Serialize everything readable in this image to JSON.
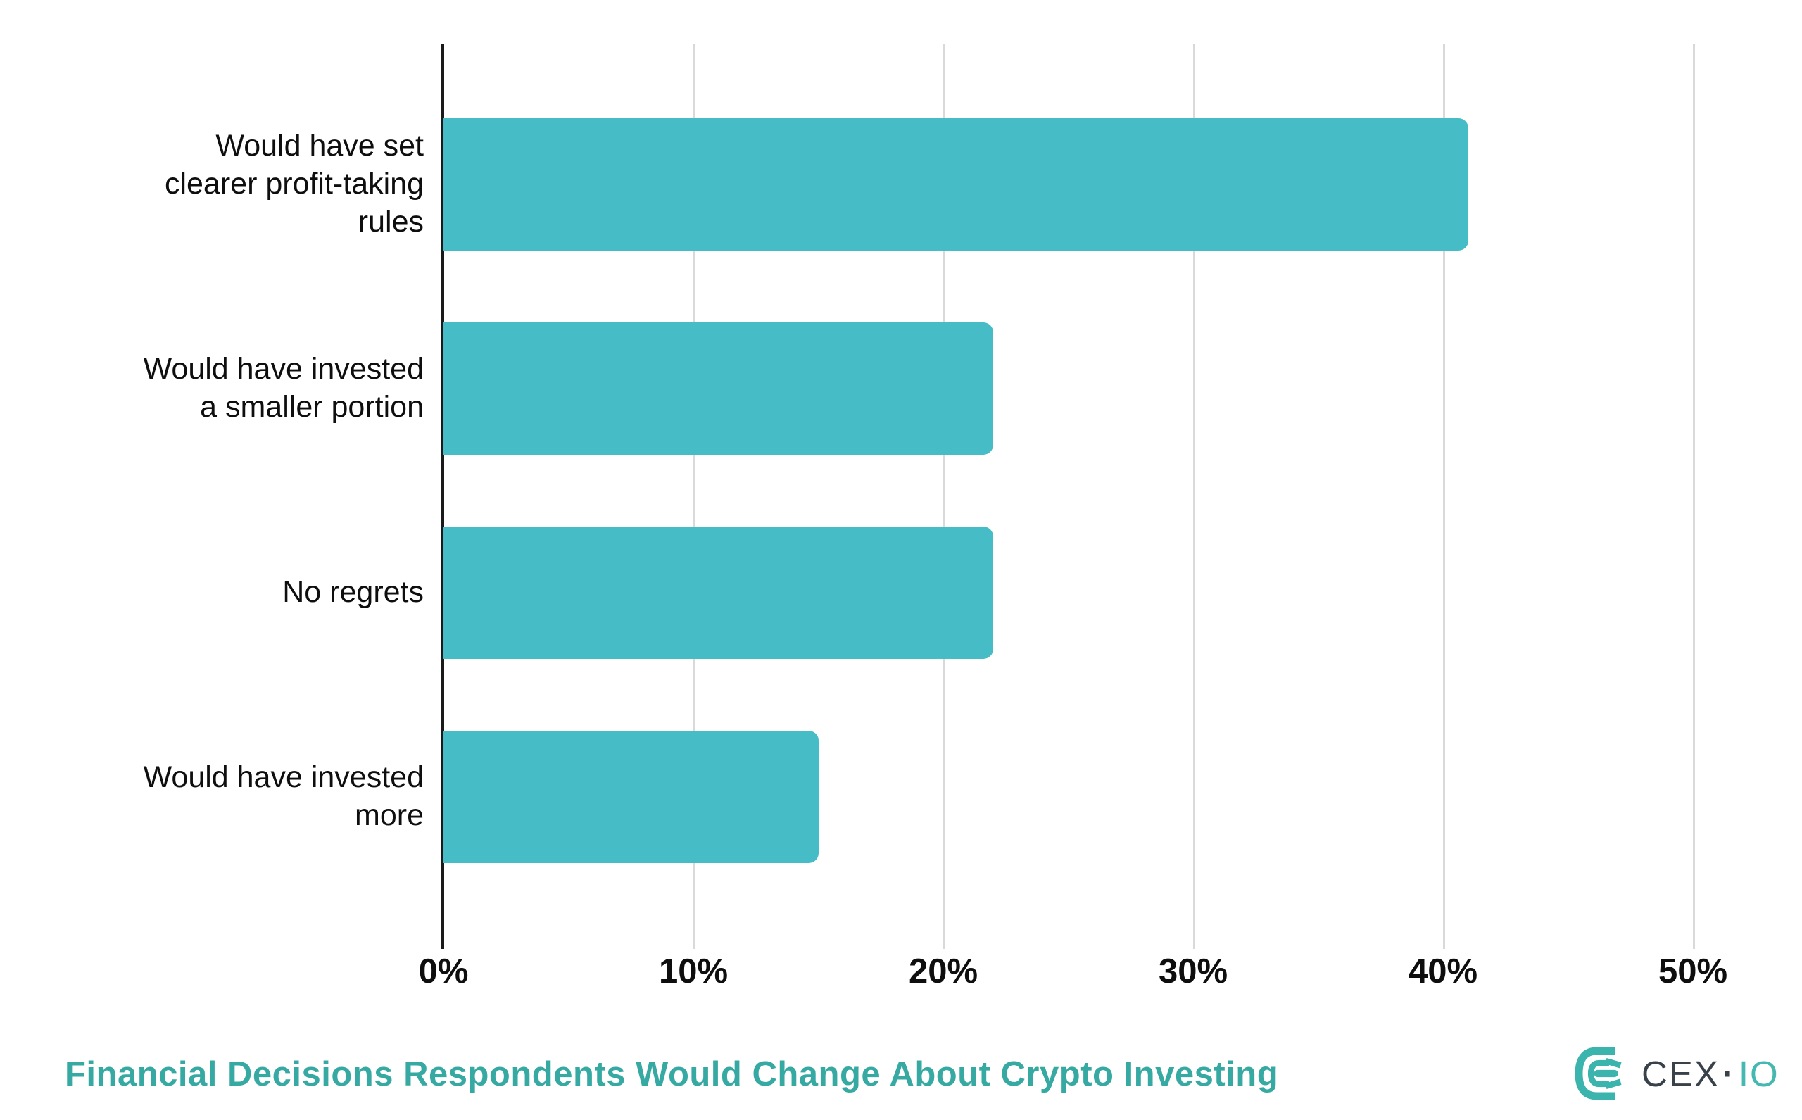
{
  "title": {
    "text": "Financial Decisions Respondents Would Change About Crypto Investing",
    "color": "#36A9A3"
  },
  "logo": {
    "brand": "CEX.IO",
    "text_primary": "CEX",
    "separator": "·",
    "text_secondary": "IO",
    "mark_icon": "cexio-emblem",
    "mark_color": "#3AB4AC",
    "text_color": "#39424B",
    "accent_color": "#46B8B2"
  },
  "chart_data": {
    "type": "bar",
    "orientation": "horizontal",
    "title": "Financial Decisions Respondents Would Change About Crypto Investing",
    "categories": [
      "Would have set clearer profit-taking rules",
      "Would have invested a smaller portion",
      "No regrets",
      "Would have invested more"
    ],
    "category_label_lines": [
      [
        "Would have set",
        "clearer profit-taking",
        "rules"
      ],
      [
        "Would have invested",
        "a smaller portion"
      ],
      [
        "No regrets"
      ],
      [
        "Would have invested",
        "more"
      ]
    ],
    "values": [
      41,
      22,
      22,
      15
    ],
    "value_unit": "%",
    "xlim": [
      0,
      50
    ],
    "x_ticks": [
      0,
      10,
      20,
      30,
      40,
      50
    ],
    "x_tick_labels": [
      "0%",
      "10%",
      "20%",
      "30%",
      "40%",
      "50%"
    ],
    "grid": "vertical",
    "legend": false,
    "bar_color": "#45BCC6",
    "gridline_color": "#D9D9D9",
    "axis_color": "#1A1A1A",
    "label_color": "#0E0E0E"
  }
}
